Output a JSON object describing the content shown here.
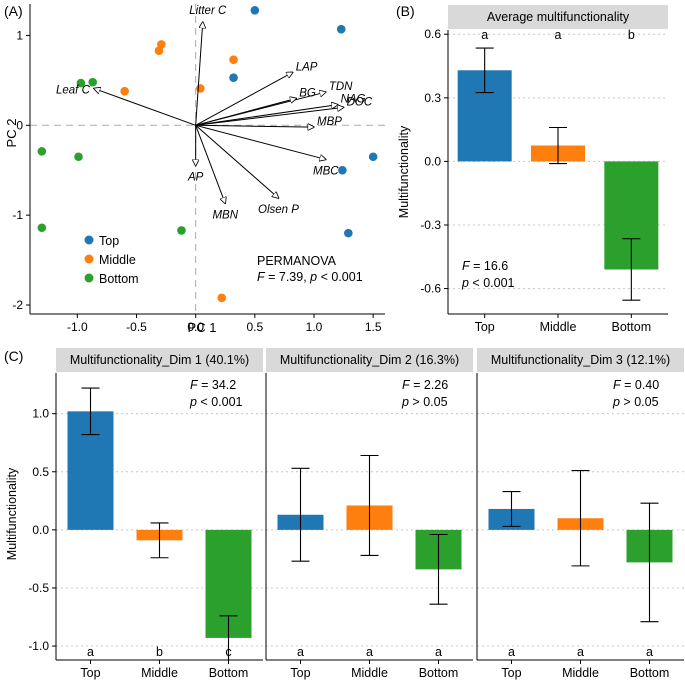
{
  "colors": {
    "top": "#1f77b4",
    "middle": "#ff7f0e",
    "bottom": "#2ca02c",
    "strip": "#d9d9d9"
  },
  "chart_data": [
    {
      "panel_label": "(A)",
      "type": "scatter",
      "xlabel": "PC 1",
      "ylabel": "PC 2",
      "xlim": [
        -1.4,
        1.6
      ],
      "ylim": [
        -2.1,
        1.35
      ],
      "x_ticks": [
        -1.0,
        -0.5,
        0.0,
        0.5,
        1.0,
        1.5
      ],
      "x_tick_labels": [
        "-1.0",
        "-0.5",
        "0.0",
        "0.5",
        "1.0",
        "1.5"
      ],
      "y_ticks": [
        1,
        0,
        -1,
        -2
      ],
      "y_tick_labels": [
        "1",
        "0",
        "-1",
        "-2"
      ],
      "series": [
        {
          "name": "Top",
          "color": "#1f77b4",
          "points": [
            [
              0.5,
              1.28
            ],
            [
              1.23,
              1.07
            ],
            [
              0.32,
              0.53
            ],
            [
              1.5,
              -0.35
            ],
            [
              1.24,
              -0.5
            ],
            [
              1.29,
              -1.2
            ]
          ]
        },
        {
          "name": "Middle",
          "color": "#ff7f0e",
          "points": [
            [
              -0.29,
              0.9
            ],
            [
              -0.31,
              0.83
            ],
            [
              0.32,
              0.73
            ],
            [
              -0.6,
              0.38
            ],
            [
              0.04,
              0.41
            ],
            [
              0.22,
              -1.92
            ]
          ]
        },
        {
          "name": "Bottom",
          "color": "#2ca02c",
          "points": [
            [
              -0.97,
              0.47
            ],
            [
              -0.87,
              0.48
            ],
            [
              -1.3,
              -0.29
            ],
            [
              -0.99,
              -0.35
            ],
            [
              -1.3,
              -1.14
            ],
            [
              -0.12,
              -1.17
            ]
          ]
        }
      ],
      "loadings": [
        {
          "label": "Litter C",
          "x": 0.06,
          "y": 1.15
        },
        {
          "label": "LAP",
          "x": 0.82,
          "y": 0.59
        },
        {
          "label": "TDN",
          "x": 1.1,
          "y": 0.37
        },
        {
          "label": "BG",
          "x": 0.85,
          "y": 0.3
        },
        {
          "label": "NAG",
          "x": 1.2,
          "y": 0.23
        },
        {
          "label": "DOC",
          "x": 1.25,
          "y": 0.2
        },
        {
          "label": "MBP",
          "x": 1.0,
          "y": -0.02
        },
        {
          "label": "MBC",
          "x": 1.1,
          "y": -0.38
        },
        {
          "label": "Olsen P",
          "x": 0.7,
          "y": -0.81
        },
        {
          "label": "MBN",
          "x": 0.25,
          "y": -0.87
        },
        {
          "label": "AP",
          "x": 0.0,
          "y": -0.45
        },
        {
          "label": "Leaf C",
          "x": -0.86,
          "y": 0.41
        }
      ],
      "legend": [
        "Top",
        "Middle",
        "Bottom"
      ],
      "legend_position": "bottom-left",
      "annotation_title": "PERMANOVA",
      "f_label": "F",
      "f_text": " = 7.39, ",
      "p_label": "p",
      "p_text": " < 0.001"
    },
    {
      "panel_label": "(B)",
      "type": "bar",
      "title": "Average multifunctionality",
      "ylabel": "Multifunctionality",
      "categories": [
        "Top",
        "Middle",
        "Bottom"
      ],
      "values": [
        0.43,
        0.075,
        -0.51
      ],
      "error": [
        0.105,
        0.085,
        0.145
      ],
      "letters": [
        "a",
        "a",
        "b"
      ],
      "ylim": [
        -0.72,
        0.62
      ],
      "y_ticks": [
        0.6,
        0.3,
        0.0,
        -0.3,
        -0.6
      ],
      "y_tick_labels": [
        "0.6",
        "0.3",
        "0.0",
        "-0.3",
        "-0.6"
      ],
      "f_label": "F",
      "f_text": " = 16.6",
      "p_label": "p",
      "p_text": " < 0.001"
    },
    {
      "panel_label": "(C)",
      "type": "bar",
      "ylabel": "Multifunctionality",
      "ylim": [
        -1.12,
        1.35
      ],
      "y_ticks": [
        1.0,
        0.5,
        0.0,
        -0.5,
        -1.0
      ],
      "y_tick_labels": [
        "1.0",
        "0.5",
        "0.0",
        "-0.5",
        "-1.0"
      ],
      "categories": [
        "Top",
        "Middle",
        "Bottom"
      ],
      "facets": [
        {
          "title": "Multifunctionality_Dim 1 (40.1%)",
          "values": [
            1.02,
            -0.09,
            -0.93
          ],
          "error": [
            0.2,
            0.15,
            0.19
          ],
          "letters": [
            "a",
            "b",
            "c"
          ],
          "f_label": "F",
          "f_text": " = 34.2",
          "p_label": "p",
          "p_text": " < 0.001"
        },
        {
          "title": "Multifunctionality_Dim 2 (16.3%)",
          "values": [
            0.13,
            0.21,
            -0.34
          ],
          "error": [
            0.4,
            0.43,
            0.3
          ],
          "letters": [
            "a",
            "a",
            "a"
          ],
          "f_label": "F",
          "f_text": " = 2.26",
          "p_label": "p",
          "p_text": " > 0.05"
        },
        {
          "title": "Multifunctionality_Dim 3 (12.1%)",
          "values": [
            0.18,
            0.1,
            -0.28
          ],
          "error": [
            0.15,
            0.41,
            0.51
          ],
          "letters": [
            "a",
            "a",
            "a"
          ],
          "f_label": "F",
          "f_text": " = 0.40",
          "p_label": "p",
          "p_text": " > 0.05"
        }
      ]
    }
  ]
}
